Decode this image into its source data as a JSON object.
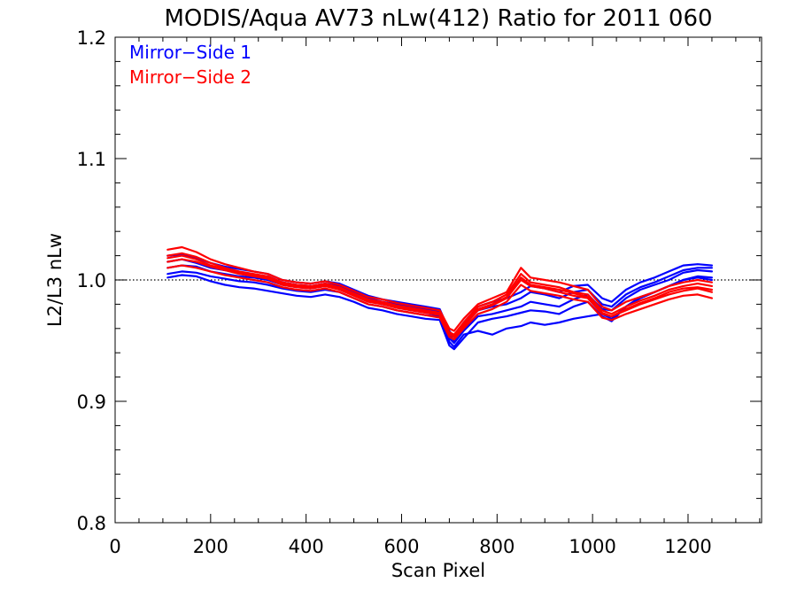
{
  "chart_data": {
    "type": "line",
    "title": "MODIS/Aqua AV73 nLw(412) Ratio for 2011 060",
    "xlabel": "Scan Pixel",
    "ylabel": "L2/L3 nLw",
    "xlim": [
      0,
      1354
    ],
    "ylim": [
      0.8,
      1.2
    ],
    "xticks": [
      0,
      200,
      400,
      600,
      800,
      1000,
      1200
    ],
    "xtick_labels": [
      "0",
      "200",
      "400",
      "600",
      "800",
      "1000",
      "1200"
    ],
    "yticks": [
      0.8,
      0.9,
      1.0,
      1.1,
      1.2
    ],
    "ytick_labels": [
      "0.8",
      "0.9",
      "1.0",
      "1.1",
      "1.2"
    ],
    "reference_line": {
      "y": 1.0,
      "style": "dotted"
    },
    "legend": {
      "placement": "top-left",
      "entries": [
        {
          "label": "Mirror−Side 1",
          "color": "#0000ff"
        },
        {
          "label": "Mirror−Side 2",
          "color": "#ff0000"
        }
      ]
    },
    "grid": false,
    "x": [
      110,
      140,
      170,
      200,
      230,
      260,
      290,
      320,
      350,
      380,
      410,
      440,
      470,
      500,
      530,
      560,
      590,
      620,
      650,
      680,
      700,
      710,
      730,
      760,
      790,
      820,
      850,
      870,
      900,
      930,
      960,
      990,
      1020,
      1040,
      1070,
      1100,
      1130,
      1160,
      1190,
      1220,
      1250
    ],
    "series": [
      {
        "color": "#0000ff",
        "values": [
          1.015,
          1.017,
          1.014,
          1.01,
          1.008,
          1.006,
          1.004,
          1.003,
          0.998,
          0.996,
          0.995,
          0.997,
          0.995,
          0.99,
          0.985,
          0.982,
          0.98,
          0.978,
          0.976,
          0.974,
          0.955,
          0.95,
          0.962,
          0.975,
          0.978,
          0.98,
          0.985,
          0.99,
          0.988,
          0.985,
          0.99,
          0.992,
          0.98,
          0.978,
          0.988,
          0.994,
          0.998,
          1.003,
          1.008,
          1.01,
          1.01
        ]
      },
      {
        "color": "#0000ff",
        "values": [
          1.01,
          1.012,
          1.011,
          1.007,
          1.005,
          1.003,
          1.002,
          1.0,
          0.996,
          0.994,
          0.993,
          0.995,
          0.993,
          0.988,
          0.983,
          0.98,
          0.978,
          0.976,
          0.974,
          0.972,
          0.952,
          0.948,
          0.958,
          0.97,
          0.972,
          0.975,
          0.978,
          0.982,
          0.98,
          0.978,
          0.984,
          0.988,
          0.976,
          0.975,
          0.985,
          0.992,
          0.996,
          1.0,
          1.006,
          1.008,
          1.007
        ]
      },
      {
        "color": "#0000ff",
        "values": [
          1.005,
          1.007,
          1.006,
          1.003,
          1.001,
          0.999,
          0.998,
          0.996,
          0.993,
          0.991,
          0.99,
          0.992,
          0.99,
          0.985,
          0.98,
          0.978,
          0.975,
          0.973,
          0.971,
          0.97,
          0.949,
          0.945,
          0.955,
          0.958,
          0.955,
          0.96,
          0.962,
          0.965,
          0.963,
          0.965,
          0.968,
          0.97,
          0.972,
          0.968,
          0.978,
          0.986,
          0.99,
          0.995,
          1.0,
          1.003,
          1.002
        ]
      },
      {
        "color": "#0000ff",
        "values": [
          1.02,
          1.021,
          1.018,
          1.014,
          1.011,
          1.009,
          1.007,
          1.005,
          1.0,
          0.998,
          0.997,
          0.999,
          0.997,
          0.992,
          0.987,
          0.984,
          0.982,
          0.98,
          0.978,
          0.976,
          0.958,
          0.953,
          0.965,
          0.978,
          0.982,
          0.985,
          0.99,
          0.995,
          0.993,
          0.99,
          0.995,
          0.996,
          0.985,
          0.982,
          0.992,
          0.998,
          1.002,
          1.007,
          1.012,
          1.013,
          1.012
        ]
      },
      {
        "color": "#0000ff",
        "values": [
          1.002,
          1.004,
          1.003,
          0.999,
          0.996,
          0.994,
          0.993,
          0.991,
          0.989,
          0.987,
          0.986,
          0.988,
          0.986,
          0.982,
          0.977,
          0.975,
          0.972,
          0.97,
          0.968,
          0.967,
          0.946,
          0.943,
          0.952,
          0.965,
          0.968,
          0.97,
          0.973,
          0.975,
          0.974,
          0.972,
          0.978,
          0.982,
          0.97,
          0.966,
          0.978,
          0.985,
          0.99,
          0.995,
          1.0,
          1.002,
          1.0
        ]
      },
      {
        "color": "#ff0000",
        "values": [
          1.025,
          1.027,
          1.023,
          1.017,
          1.013,
          1.01,
          1.007,
          1.005,
          1.0,
          0.998,
          0.997,
          0.999,
          0.996,
          0.991,
          0.986,
          0.984,
          0.981,
          0.979,
          0.977,
          0.975,
          0.96,
          0.958,
          0.968,
          0.98,
          0.985,
          0.99,
          1.01,
          1.002,
          1.0,
          0.998,
          0.995,
          0.992,
          0.978,
          0.975,
          0.982,
          0.986,
          0.99,
          0.995,
          0.998,
          1.0,
          0.998
        ]
      },
      {
        "color": "#ff0000",
        "values": [
          1.02,
          1.022,
          1.019,
          1.014,
          1.01,
          1.007,
          1.005,
          1.003,
          0.998,
          0.996,
          0.995,
          0.997,
          0.994,
          0.989,
          0.984,
          0.982,
          0.979,
          0.977,
          0.975,
          0.973,
          0.957,
          0.955,
          0.965,
          0.978,
          0.982,
          0.988,
          1.005,
          0.998,
          0.996,
          0.994,
          0.99,
          0.988,
          0.975,
          0.972,
          0.978,
          0.983,
          0.987,
          0.992,
          0.995,
          0.997,
          0.995
        ]
      },
      {
        "color": "#ff0000",
        "values": [
          1.015,
          1.017,
          1.015,
          1.011,
          1.008,
          1.005,
          1.003,
          1.001,
          0.996,
          0.994,
          0.993,
          0.995,
          0.992,
          0.987,
          0.982,
          0.98,
          0.977,
          0.975,
          0.973,
          0.971,
          0.955,
          0.953,
          0.962,
          0.975,
          0.979,
          0.985,
          1.0,
          0.995,
          0.993,
          0.99,
          0.987,
          0.985,
          0.972,
          0.97,
          0.975,
          0.98,
          0.984,
          0.988,
          0.991,
          0.993,
          0.99
        ]
      },
      {
        "color": "#ff0000",
        "values": [
          1.01,
          1.012,
          1.01,
          1.007,
          1.004,
          1.002,
          1.0,
          0.998,
          0.994,
          0.992,
          0.991,
          0.993,
          0.99,
          0.985,
          0.98,
          0.978,
          0.975,
          0.973,
          0.971,
          0.969,
          0.953,
          0.951,
          0.96,
          0.972,
          0.976,
          0.982,
          0.996,
          0.991,
          0.989,
          0.987,
          0.984,
          0.982,
          0.969,
          0.967,
          0.972,
          0.976,
          0.98,
          0.984,
          0.987,
          0.988,
          0.985
        ]
      },
      {
        "color": "#ff0000",
        "values": [
          1.018,
          1.02,
          1.017,
          1.012,
          1.009,
          1.006,
          1.004,
          1.002,
          0.997,
          0.995,
          0.994,
          0.996,
          0.993,
          0.988,
          0.983,
          0.981,
          0.978,
          0.976,
          0.974,
          0.972,
          0.956,
          0.954,
          0.963,
          0.976,
          0.98,
          0.986,
          1.002,
          0.996,
          0.994,
          0.992,
          0.989,
          0.986,
          0.973,
          0.97,
          0.976,
          0.981,
          0.985,
          0.99,
          0.993,
          0.994,
          0.992
        ]
      }
    ]
  }
}
